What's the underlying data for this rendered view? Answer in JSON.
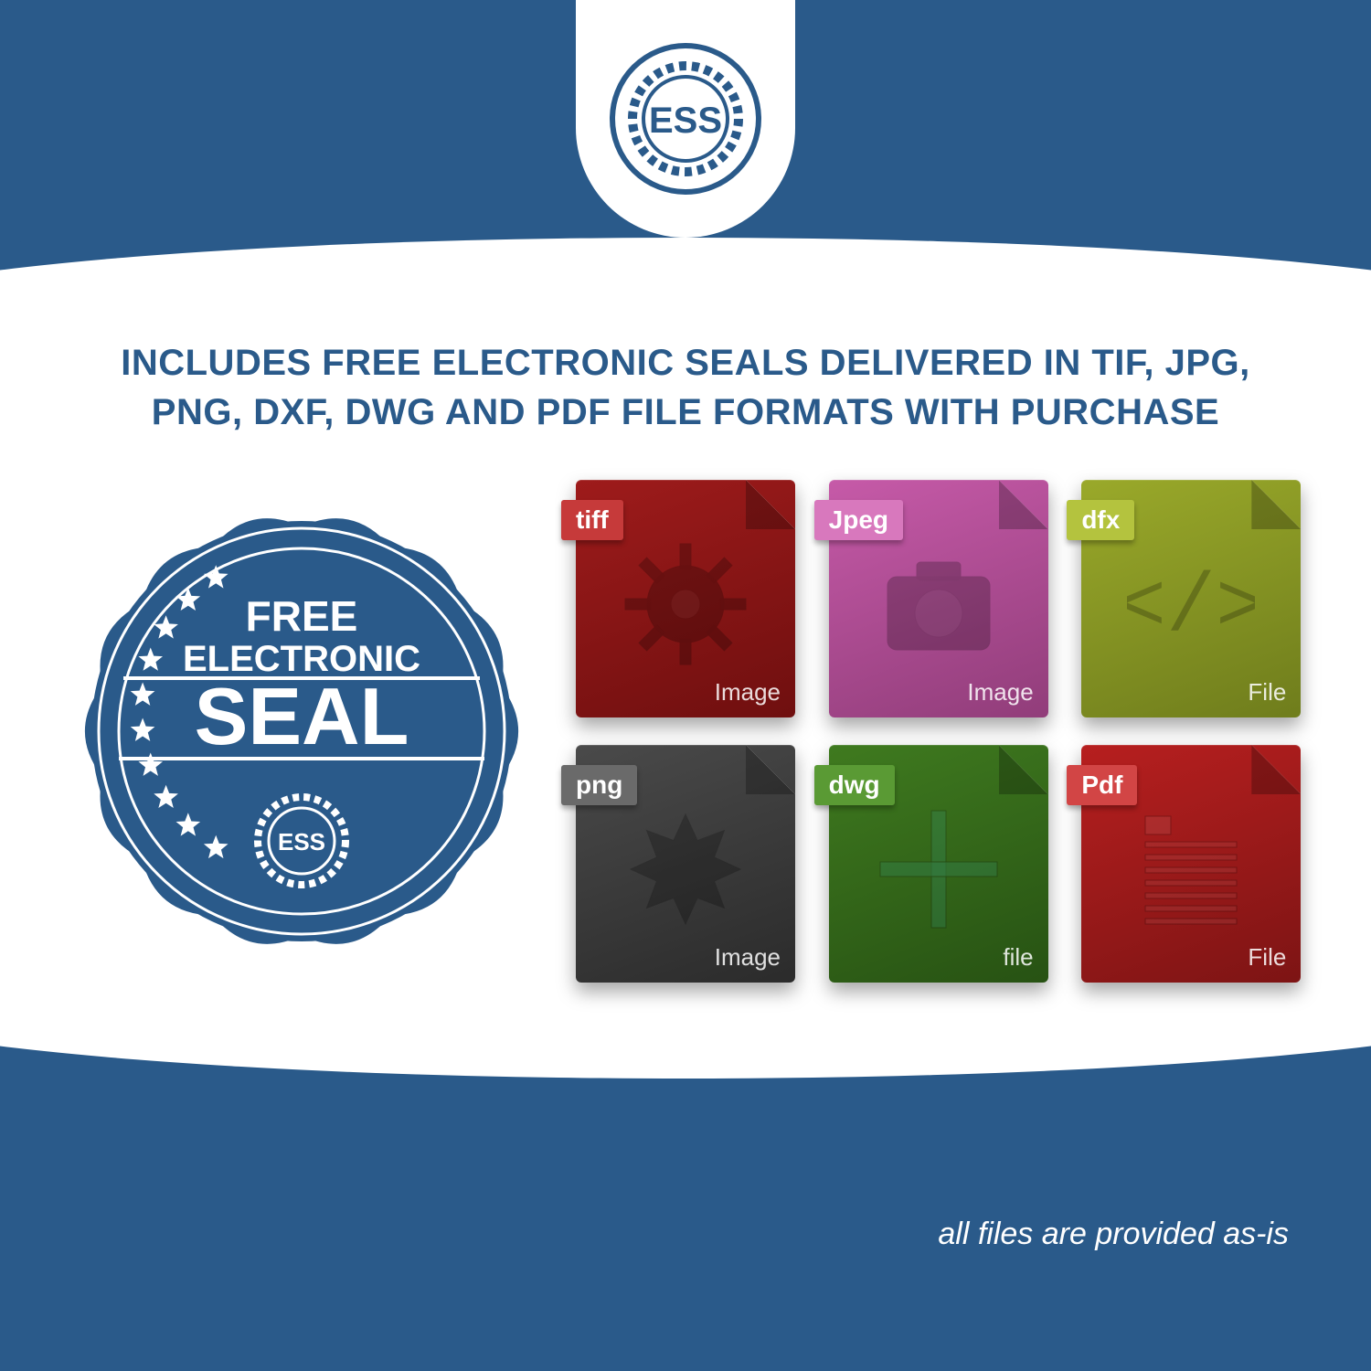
{
  "colors": {
    "brand_blue": "#2a5a8a",
    "white": "#ffffff"
  },
  "logo": {
    "text": "ESS",
    "ring_color": "#2a5a8a",
    "text_color": "#2a5a8a"
  },
  "headline": "INCLUDES FREE ELECTRONIC SEALS DELIVERED IN TIF, JPG, PNG, DXF, DWG AND PDF FILE FORMATS WITH PURCHASE",
  "seal": {
    "line1": "FREE",
    "line2": "ELECTRONIC",
    "line3": "SEAL",
    "inner_logo": "ESS",
    "star_count": 10,
    "fill_color": "#2a5a8a",
    "text_color": "#ffffff"
  },
  "files": [
    {
      "label": "tiff",
      "bottom": "Image",
      "body_color": "#9e1b1b",
      "body_gradient_to": "#6f0f0f",
      "tab_color": "#c63a3a",
      "glyph": "gear"
    },
    {
      "label": "Jpeg",
      "bottom": "Image",
      "body_color": "#c65aa8",
      "body_gradient_to": "#913d7a",
      "tab_color": "#d878bd",
      "glyph": "camera"
    },
    {
      "label": "dfx",
      "bottom": "File",
      "body_color": "#9aa92a",
      "body_gradient_to": "#6f7d1c",
      "tab_color": "#b4c33e",
      "glyph": "code"
    },
    {
      "label": "png",
      "bottom": "Image",
      "body_color": "#4a4a4a",
      "body_gradient_to": "#2b2b2b",
      "tab_color": "#6a6a6a",
      "glyph": "burst"
    },
    {
      "label": "dwg",
      "bottom": "file",
      "body_color": "#3f7a1f",
      "body_gradient_to": "#275213",
      "tab_color": "#5a9a34",
      "glyph": "cross"
    },
    {
      "label": "Pdf",
      "bottom": "File",
      "body_color": "#b71f1f",
      "body_gradient_to": "#7d1414",
      "tab_color": "#d24545",
      "glyph": "doc"
    }
  ],
  "footer_note": "all files are provided as-is"
}
